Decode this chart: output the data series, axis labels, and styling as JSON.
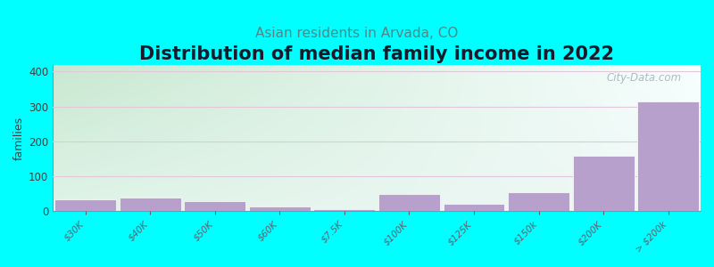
{
  "title": "Distribution of median family income in 2022",
  "subtitle": "Asian residents in Arvada, CO",
  "ylabel": "families",
  "background_color": "#00FFFF",
  "plot_bg_gradient_top_left": "#c8e8d0",
  "plot_bg_gradient_bottom_right": "#f0f8f8",
  "bar_color": "#b8a0cc",
  "bar_edge_color": "#ffffff",
  "categories": [
    "$30K",
    "$40K",
    "$50K",
    "$60K",
    "$7.5K",
    "$100K",
    "$125K",
    "$150k",
    "$200K",
    "> $200k"
  ],
  "values": [
    35,
    40,
    30,
    15,
    5,
    50,
    22,
    55,
    160,
    315
  ],
  "ylim": [
    0,
    420
  ],
  "yticks": [
    0,
    100,
    200,
    300,
    400
  ],
  "grid_color": "#e0c8d8",
  "title_fontsize": 15,
  "subtitle_fontsize": 11,
  "subtitle_color": "#508888",
  "watermark_text": "City-Data.com",
  "watermark_color": "#a0b0b8",
  "bar_width": 0.95
}
